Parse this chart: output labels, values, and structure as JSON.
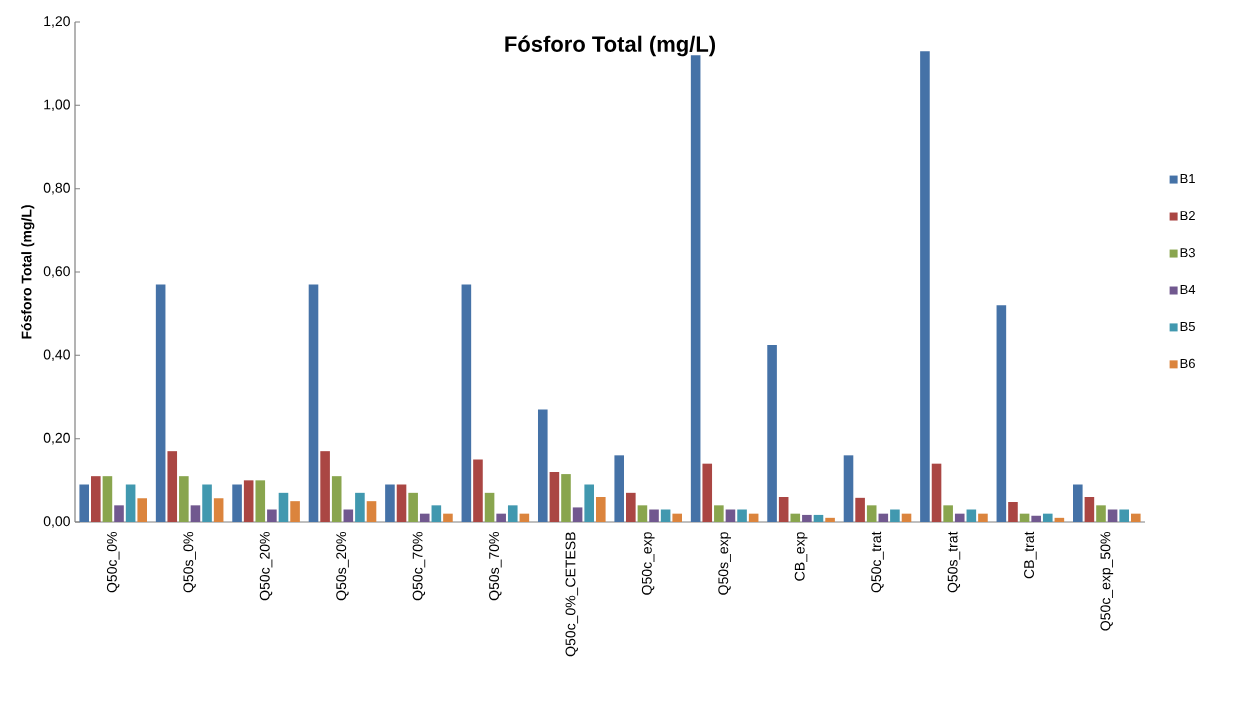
{
  "chart_data": {
    "type": "bar",
    "title": "Fósforo Total (mg/L)",
    "ylabel": "Fósforo Total (mg/L)",
    "categories": [
      "Q50c_0%",
      "Q50s_0%",
      "Q50c_20%",
      "Q50s_20%",
      "Q50c_70%",
      "Q50s_70%",
      "Q50c_0%_CETESB",
      "Q50c_exp",
      "Q50s_exp",
      "CB_exp",
      "Q50c_trat",
      "Q50s_trat",
      "CB_trat",
      "Q50c_exp_50%"
    ],
    "series": [
      {
        "name": "B1",
        "color": "#4572a7",
        "values": [
          0.09,
          0.57,
          0.09,
          0.57,
          0.09,
          0.57,
          0.27,
          0.16,
          1.12,
          0.425,
          0.16,
          1.13,
          0.52,
          0.09
        ]
      },
      {
        "name": "B2",
        "color": "#aa4643",
        "values": [
          0.11,
          0.17,
          0.1,
          0.17,
          0.09,
          0.15,
          0.12,
          0.07,
          0.14,
          0.06,
          0.058,
          0.14,
          0.048,
          0.06
        ]
      },
      {
        "name": "B3",
        "color": "#89a54e",
        "values": [
          0.11,
          0.11,
          0.1,
          0.11,
          0.07,
          0.07,
          0.115,
          0.04,
          0.04,
          0.02,
          0.04,
          0.04,
          0.02,
          0.04
        ]
      },
      {
        "name": "B4",
        "color": "#71588f",
        "values": [
          0.04,
          0.04,
          0.03,
          0.03,
          0.02,
          0.02,
          0.035,
          0.03,
          0.03,
          0.017,
          0.02,
          0.02,
          0.015,
          0.03
        ]
      },
      {
        "name": "B5",
        "color": "#4198af",
        "values": [
          0.09,
          0.09,
          0.07,
          0.07,
          0.04,
          0.04,
          0.09,
          0.03,
          0.03,
          0.017,
          0.03,
          0.03,
          0.02,
          0.03
        ]
      },
      {
        "name": "B6",
        "color": "#db843d",
        "values": [
          0.057,
          0.057,
          0.05,
          0.05,
          0.02,
          0.02,
          0.06,
          0.02,
          0.02,
          0.01,
          0.02,
          0.02,
          0.01,
          0.02
        ]
      }
    ],
    "ylim": [
      0,
      1.2
    ],
    "yticks": [
      {
        "value": 0,
        "label": "0,00"
      },
      {
        "value": 0.2,
        "label": "0,20"
      },
      {
        "value": 0.4,
        "label": "0,40"
      },
      {
        "value": 0.6,
        "label": "0,60"
      },
      {
        "value": 0.8,
        "label": "0,80"
      },
      {
        "value": 1.0,
        "label": "1,00"
      },
      {
        "value": 1.2,
        "label": "1,20"
      }
    ],
    "legend": "right",
    "grid": false
  }
}
